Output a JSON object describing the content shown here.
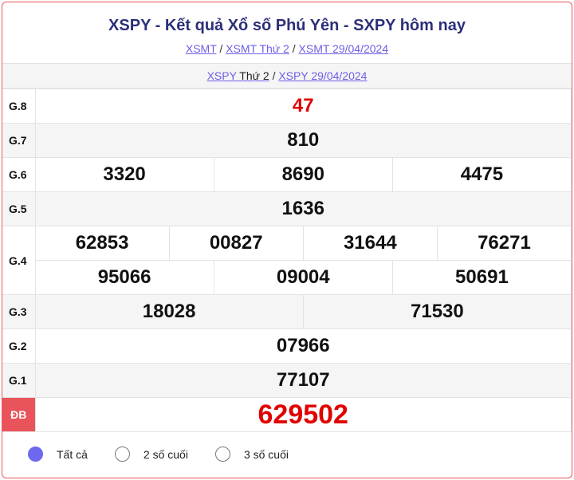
{
  "title": "XSPY - Kết quả Xổ số Phú Yên - SXPY hôm nay",
  "breadcrumb": [
    "XSMT",
    "XSMT Thứ 2",
    "XSMT 29/04/2024"
  ],
  "sub": {
    "link1": "XSPY",
    "plain": " Thứ 2",
    "link2": "XSPY 29/04/2024"
  },
  "prizes": {
    "g8": {
      "label": "G.8",
      "values": [
        "47"
      ]
    },
    "g7": {
      "label": "G.7",
      "values": [
        "810"
      ]
    },
    "g6": {
      "label": "G.6",
      "values": [
        "3320",
        "8690",
        "4475"
      ]
    },
    "g5": {
      "label": "G.5",
      "values": [
        "1636"
      ]
    },
    "g4": {
      "label": "G.4",
      "values": [
        "62853",
        "00827",
        "31644",
        "76271",
        "95066",
        "09004",
        "50691"
      ]
    },
    "g3": {
      "label": "G.3",
      "values": [
        "18028",
        "71530"
      ]
    },
    "g2": {
      "label": "G.2",
      "values": [
        "07966"
      ]
    },
    "g1": {
      "label": "G.1",
      "values": [
        "77107"
      ]
    },
    "db": {
      "label": "ĐB",
      "values": [
        "629502"
      ]
    }
  },
  "filters": [
    {
      "label": "Tất cả",
      "selected": true
    },
    {
      "label": "2 số cuối",
      "selected": false
    },
    {
      "label": "3 số cuối",
      "selected": false
    }
  ],
  "colors": {
    "accent": "#6e68f0",
    "special": "#e00000",
    "border": "#e8565c"
  }
}
